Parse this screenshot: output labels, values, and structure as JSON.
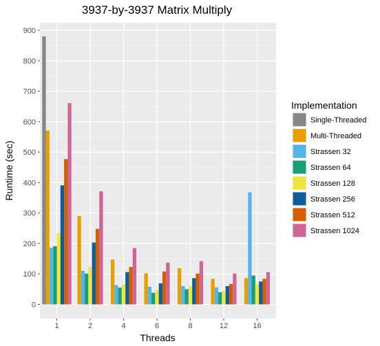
{
  "chart_data": {
    "type": "bar",
    "title": "3937-by-3937 Matrix Multiply",
    "xlabel": "Threads",
    "ylabel": "Runtime (sec)",
    "ylim": [
      -20,
      920
    ],
    "yticks": [
      0,
      100,
      200,
      300,
      400,
      500,
      600,
      700,
      800,
      900
    ],
    "categories": [
      "1",
      "2",
      "4",
      "6",
      "8",
      "12",
      "16"
    ],
    "legend_title": "Implementation",
    "legend_position": "right",
    "grid": true,
    "series": [
      {
        "name": "Single-Threaded",
        "color": "#878787",
        "values": [
          880,
          null,
          null,
          null,
          null,
          null,
          null
        ]
      },
      {
        "name": "Multi-Threaded",
        "color": "#E69F00",
        "values": [
          571,
          290,
          147,
          102,
          119,
          84,
          86
        ]
      },
      {
        "name": "Strassen 32",
        "color": "#56B4E9",
        "values": [
          186,
          110,
          63,
          58,
          60,
          56,
          368
        ]
      },
      {
        "name": "Strassen 64",
        "color": "#1B9E77",
        "values": [
          191,
          101,
          55,
          38,
          50,
          40,
          95
        ]
      },
      {
        "name": "Strassen 128",
        "color": "#F0E442",
        "values": [
          234,
          123,
          65,
          47,
          59,
          44,
          66
        ]
      },
      {
        "name": "Strassen 256",
        "color": "#0F5E9C",
        "values": [
          391,
          203,
          106,
          69,
          86,
          60,
          75
        ]
      },
      {
        "name": "Strassen 512",
        "color": "#D55E00",
        "values": [
          477,
          248,
          123,
          108,
          101,
          67,
          84
        ]
      },
      {
        "name": "Strassen 1024",
        "color": "#CC6699",
        "values": [
          661,
          371,
          185,
          137,
          142,
          101,
          106
        ]
      }
    ]
  }
}
